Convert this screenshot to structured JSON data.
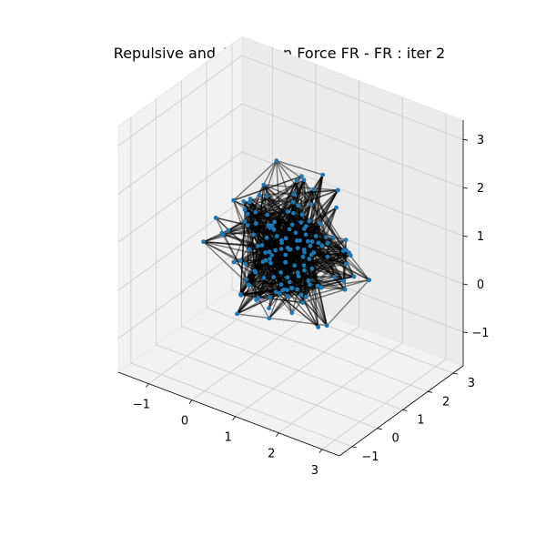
{
  "chart_data": {
    "type": "scatter",
    "projection": "3d",
    "title": "Repulsive and Attraction Force FR - FR : iter 2",
    "xlabel": "",
    "ylabel": "",
    "zlabel": "",
    "xlim": [
      -1.7,
      3.4
    ],
    "ylim": [
      -1.5,
      3.4
    ],
    "zlim": [
      -1.7,
      3.4
    ],
    "x_ticks": [
      -1,
      0,
      1,
      2,
      3
    ],
    "x_tick_labels": [
      "−1",
      "0",
      "1",
      "2",
      "3"
    ],
    "y_ticks": [
      -1,
      0,
      1,
      2,
      3
    ],
    "y_tick_labels": [
      "−1",
      "0",
      "1",
      "2",
      "3"
    ],
    "z_ticks": [
      -1,
      0,
      1,
      2,
      3
    ],
    "z_tick_labels": [
      "−1",
      "0",
      "1",
      "2",
      "3"
    ],
    "grid": true,
    "node_color": "#1f77b4",
    "edge_color": "#000000",
    "edge_alpha": 0.5,
    "node_count": 150,
    "edge_count": 700
  }
}
